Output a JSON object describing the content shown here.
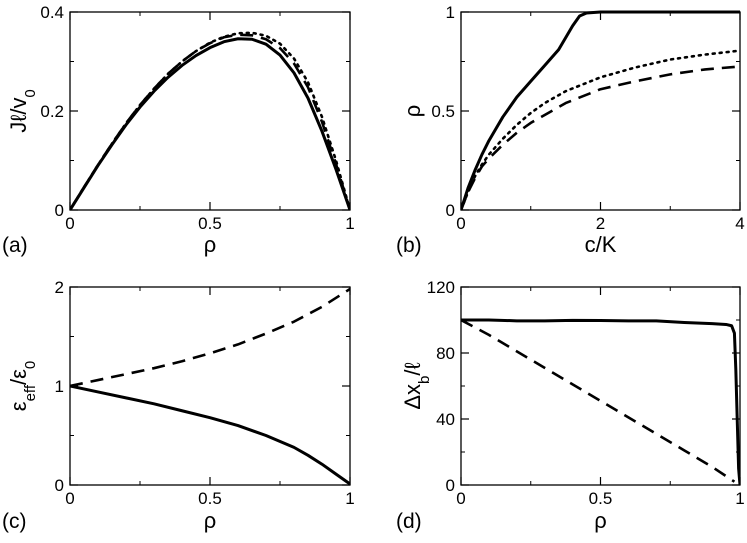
{
  "chart_data": [
    {
      "id": "a",
      "type": "line",
      "panel_label": "(a)",
      "xlabel": "ρ",
      "ylabel": "Jℓ/v₀",
      "ylabel_parts": {
        "main": "Jℓ/v",
        "sub": "0"
      },
      "xlim": [
        0,
        1
      ],
      "ylim": [
        0,
        0.4
      ],
      "xticks": [
        0,
        0.5,
        1
      ],
      "xtick_labels": [
        "0",
        "0.5",
        "1"
      ],
      "yticks": [
        0,
        0.2,
        0.4
      ],
      "ytick_labels": [
        "0",
        "0.2",
        "0.4"
      ],
      "series": [
        {
          "name": "solid",
          "style": "solid",
          "x": [
            0,
            0.05,
            0.1,
            0.15,
            0.2,
            0.25,
            0.3,
            0.35,
            0.4,
            0.45,
            0.5,
            0.55,
            0.6,
            0.65,
            0.7,
            0.75,
            0.8,
            0.85,
            0.9,
            0.95,
            1
          ],
          "y": [
            0,
            0.045,
            0.09,
            0.132,
            0.172,
            0.208,
            0.24,
            0.268,
            0.292,
            0.312,
            0.328,
            0.34,
            0.346,
            0.345,
            0.335,
            0.313,
            0.277,
            0.226,
            0.159,
            0.082,
            0
          ]
        },
        {
          "name": "dotted",
          "style": "dotted",
          "x": [
            0,
            0.05,
            0.1,
            0.15,
            0.2,
            0.25,
            0.3,
            0.35,
            0.4,
            0.45,
            0.5,
            0.55,
            0.6,
            0.65,
            0.7,
            0.75,
            0.8,
            0.85,
            0.9,
            0.95,
            1
          ],
          "y": [
            0,
            0.046,
            0.091,
            0.134,
            0.175,
            0.212,
            0.245,
            0.275,
            0.3,
            0.321,
            0.338,
            0.35,
            0.357,
            0.358,
            0.352,
            0.336,
            0.306,
            0.258,
            0.188,
            0.1,
            0
          ]
        },
        {
          "name": "dashed",
          "style": "dashed",
          "x": [
            0,
            0.05,
            0.1,
            0.15,
            0.2,
            0.25,
            0.3,
            0.35,
            0.4,
            0.45,
            0.5,
            0.55,
            0.6,
            0.65,
            0.7,
            0.75,
            0.8,
            0.85,
            0.9,
            0.95,
            1
          ],
          "y": [
            0,
            0.046,
            0.091,
            0.134,
            0.175,
            0.212,
            0.245,
            0.275,
            0.3,
            0.321,
            0.337,
            0.349,
            0.354,
            0.353,
            0.345,
            0.327,
            0.296,
            0.248,
            0.178,
            0.093,
            0
          ]
        }
      ]
    },
    {
      "id": "b",
      "type": "line",
      "panel_label": "(b)",
      "xlabel": "c/K",
      "ylabel": "ρ",
      "xlim": [
        0,
        4
      ],
      "ylim": [
        0,
        1
      ],
      "xticks": [
        0,
        2,
        4
      ],
      "xtick_labels": [
        "0",
        "2",
        "4"
      ],
      "yticks": [
        0,
        0.5,
        1
      ],
      "ytick_labels": [
        "0",
        "0.5",
        "1"
      ],
      "series": [
        {
          "name": "solid",
          "style": "solid",
          "x": [
            0,
            0.1,
            0.2,
            0.3,
            0.4,
            0.6,
            0.8,
            1.0,
            1.2,
            1.4,
            1.5,
            1.6,
            1.7,
            1.8,
            2.0,
            2.5,
            3.0,
            3.5,
            4.0
          ],
          "y": [
            0,
            0.11,
            0.2,
            0.28,
            0.35,
            0.47,
            0.57,
            0.65,
            0.73,
            0.81,
            0.87,
            0.93,
            0.98,
            0.995,
            1.0,
            1.0,
            1.0,
            1.0,
            1.0
          ]
        },
        {
          "name": "dotted",
          "style": "dotted",
          "x": [
            0,
            0.1,
            0.2,
            0.3,
            0.4,
            0.6,
            0.8,
            1.0,
            1.2,
            1.5,
            2.0,
            2.5,
            3.0,
            3.5,
            4.0
          ],
          "y": [
            0,
            0.09,
            0.17,
            0.23,
            0.28,
            0.36,
            0.43,
            0.49,
            0.54,
            0.6,
            0.67,
            0.72,
            0.76,
            0.785,
            0.805
          ]
        },
        {
          "name": "dashed",
          "style": "dashed",
          "x": [
            0,
            0.1,
            0.2,
            0.3,
            0.4,
            0.6,
            0.8,
            1.0,
            1.2,
            1.5,
            2.0,
            2.5,
            3.0,
            3.5,
            4.0
          ],
          "y": [
            0,
            0.09,
            0.16,
            0.22,
            0.26,
            0.33,
            0.39,
            0.44,
            0.48,
            0.54,
            0.61,
            0.65,
            0.685,
            0.71,
            0.725
          ]
        }
      ]
    },
    {
      "id": "c",
      "type": "line",
      "panel_label": "(c)",
      "xlabel": "ρ",
      "ylabel": "ε_eff/ε_0",
      "ylabel_parts": {
        "main": "ε",
        "sub1": "eff",
        "mid": "/ε",
        "sub2": "0"
      },
      "xlim": [
        0,
        1
      ],
      "ylim": [
        0,
        2
      ],
      "xticks": [
        0,
        0.5,
        1
      ],
      "xtick_labels": [
        "0",
        "0.5",
        "1"
      ],
      "yticks": [
        0,
        1,
        2
      ],
      "ytick_labels": [
        "0",
        "1",
        "2"
      ],
      "series": [
        {
          "name": "solid",
          "style": "solid",
          "x": [
            0,
            0.1,
            0.2,
            0.3,
            0.4,
            0.5,
            0.6,
            0.7,
            0.8,
            0.85,
            0.9,
            0.95,
            1
          ],
          "y": [
            1.0,
            0.94,
            0.88,
            0.82,
            0.75,
            0.68,
            0.6,
            0.5,
            0.38,
            0.3,
            0.21,
            0.11,
            0.01
          ]
        },
        {
          "name": "dashed",
          "style": "dashed",
          "x": [
            0,
            0.1,
            0.2,
            0.3,
            0.4,
            0.5,
            0.6,
            0.7,
            0.8,
            0.9,
            1
          ],
          "y": [
            1.0,
            1.06,
            1.12,
            1.18,
            1.25,
            1.33,
            1.42,
            1.53,
            1.65,
            1.8,
            1.98
          ]
        }
      ]
    },
    {
      "id": "d",
      "type": "line",
      "panel_label": "(d)",
      "xlabel": "ρ",
      "ylabel": "Δx_b/ℓ",
      "ylabel_parts": {
        "main": "Δx",
        "sub": "b",
        "tail": "/ℓ"
      },
      "xlim": [
        0,
        1
      ],
      "ylim": [
        0,
        120
      ],
      "xticks": [
        0,
        0.5,
        1
      ],
      "xtick_labels": [
        "0",
        "0.5",
        "1"
      ],
      "yticks": [
        0,
        40,
        80,
        120
      ],
      "ytick_labels": [
        "0",
        "40",
        "80",
        "120"
      ],
      "series": [
        {
          "name": "solid",
          "style": "solid",
          "x": [
            0,
            0.1,
            0.2,
            0.3,
            0.4,
            0.5,
            0.6,
            0.7,
            0.8,
            0.9,
            0.95,
            0.97,
            0.98,
            0.985,
            0.99,
            0.995,
            1.0
          ],
          "y": [
            100,
            100,
            99.5,
            99.5,
            99.8,
            99.7,
            99.5,
            99.5,
            98.5,
            97.8,
            97.3,
            96.5,
            92,
            70,
            40,
            10,
            0
          ]
        },
        {
          "name": "dashed",
          "style": "dashed",
          "x": [
            0,
            0.1,
            0.2,
            0.3,
            0.4,
            0.5,
            0.6,
            0.7,
            0.8,
            0.9,
            0.98
          ],
          "y": [
            100,
            91,
            81,
            71,
            61,
            51,
            41,
            31,
            21,
            11,
            2
          ]
        }
      ]
    }
  ]
}
